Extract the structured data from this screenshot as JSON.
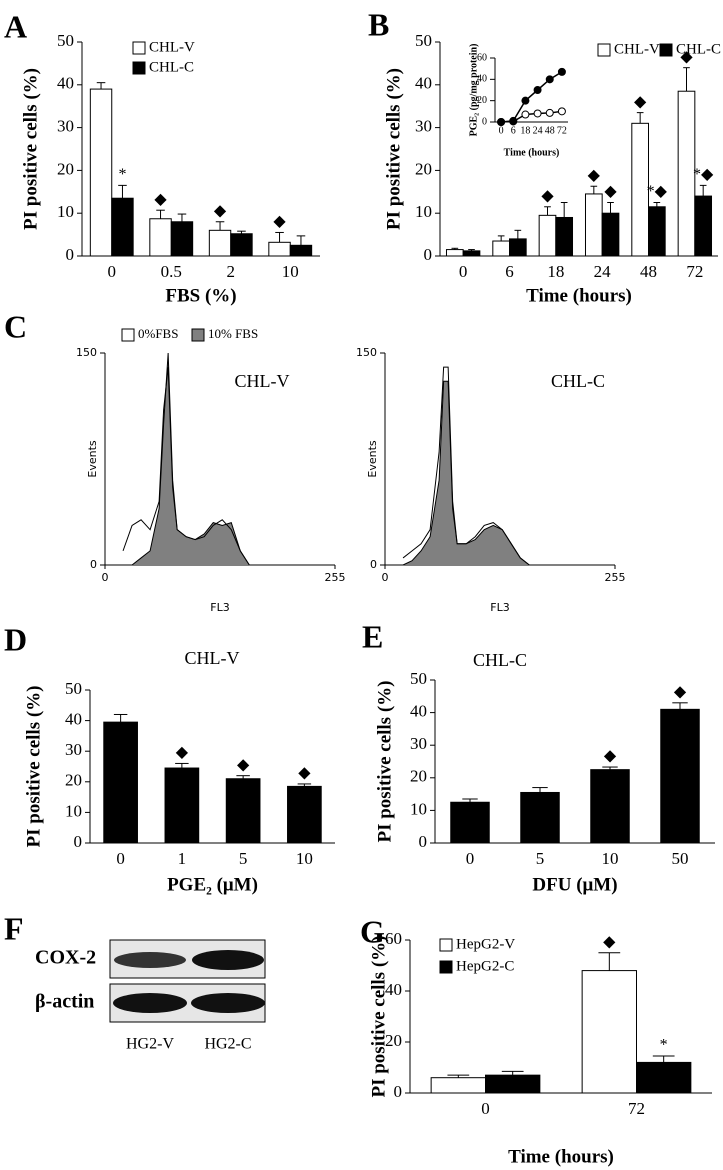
{
  "chart_data": [
    {
      "type": "bar",
      "panel": "A",
      "categories": [
        "0",
        "0.5",
        "2",
        "10"
      ],
      "xlabel": "FBS (%)",
      "ylabel": "PI positive cells (%)",
      "ylim": [
        0,
        50
      ],
      "yticks": [
        0,
        10,
        20,
        30,
        40,
        50
      ],
      "series": [
        {
          "name": "CHL-V",
          "color": "#ffffff",
          "values": [
            39,
            8.7,
            6,
            3.2
          ],
          "errors": [
            1.5,
            2,
            2,
            2.3
          ],
          "marks": [
            null,
            "◆",
            "◆",
            "◆"
          ]
        },
        {
          "name": "CHL-C",
          "color": "#000000",
          "values": [
            13.5,
            8,
            5.2,
            2.5
          ],
          "errors": [
            3,
            1.8,
            0.6,
            2.2
          ],
          "marks": [
            "*",
            null,
            null,
            null
          ]
        }
      ]
    },
    {
      "type": "bar",
      "panel": "B",
      "categories": [
        "0",
        "6",
        "18",
        "24",
        "48",
        "72"
      ],
      "xlabel": "Time (hours)",
      "ylabel": "PI positive cells (%)",
      "ylim": [
        0,
        50
      ],
      "yticks": [
        0,
        10,
        20,
        30,
        40,
        50
      ],
      "series": [
        {
          "name": "CHL-V",
          "color": "#ffffff",
          "values": [
            1.5,
            3.5,
            9.5,
            14.5,
            31,
            38.5
          ],
          "errors": [
            0.3,
            1.2,
            2,
            1.8,
            2.5,
            5.5
          ],
          "marks": [
            null,
            null,
            "◆",
            "◆",
            "◆",
            "◆"
          ]
        },
        {
          "name": "CHL-C",
          "color": "#000000",
          "values": [
            1.2,
            4,
            9,
            10,
            11.5,
            14
          ],
          "errors": [
            0.3,
            2,
            3.5,
            2.5,
            1,
            2.5
          ],
          "marks": [
            null,
            null,
            null,
            "◆",
            "*◆",
            "*◆"
          ]
        }
      ]
    },
    {
      "type": "line",
      "categories": [
        "0",
        "6",
        "18",
        "24",
        "48",
        "72"
      ],
      "xlabel": "Time (hours)",
      "ylabel": "PGE₂ (pg/mg protein)",
      "ylim": [
        0,
        60
      ],
      "yticks": [
        0,
        20,
        40,
        60
      ],
      "series": [
        {
          "color": "#ffffff",
          "values": [
            0,
            0.5,
            7,
            8,
            8.5,
            10
          ]
        },
        {
          "color": "#000000",
          "values": [
            0,
            1,
            20,
            30,
            40,
            47
          ]
        }
      ]
    },
    {
      "type": "area",
      "panel": "C",
      "annotation": "CHL-V",
      "xlabel": "FL3",
      "ylabel": "Events",
      "xlim": [
        0,
        255
      ],
      "xticks": [
        0,
        255
      ],
      "ylim": [
        0,
        150
      ],
      "yticks": [
        0,
        150
      ],
      "x": [
        20,
        30,
        40,
        50,
        60,
        65,
        70,
        75,
        80,
        90,
        100,
        110,
        120,
        130,
        140,
        150,
        160
      ],
      "series": [
        {
          "name": "0%FBS",
          "color": "#ffffff",
          "values": [
            10,
            28,
            32,
            25,
            45,
            110,
            140,
            55,
            25,
            20,
            18,
            20,
            28,
            32,
            25,
            10,
            0
          ]
        },
        {
          "name": "10% FBS",
          "color": "#808080",
          "values": [
            0,
            0,
            5,
            10,
            40,
            100,
            150,
            60,
            25,
            20,
            18,
            22,
            30,
            28,
            30,
            10,
            0
          ]
        }
      ]
    },
    {
      "type": "area",
      "annotation": "CHL-C",
      "xlabel": "FL3",
      "ylabel": "Events",
      "xlim": [
        0,
        255
      ],
      "xticks": [
        0,
        255
      ],
      "ylim": [
        0,
        150
      ],
      "yticks": [
        0,
        150
      ],
      "x": [
        20,
        30,
        40,
        50,
        60,
        65,
        70,
        75,
        80,
        90,
        100,
        110,
        120,
        130,
        140,
        150,
        160
      ],
      "series": [
        {
          "color": "#ffffff",
          "values": [
            5,
            10,
            15,
            25,
            80,
            140,
            140,
            45,
            15,
            15,
            20,
            28,
            30,
            25,
            15,
            5,
            0
          ]
        },
        {
          "color": "#808080",
          "values": [
            0,
            3,
            10,
            20,
            60,
            130,
            130,
            40,
            15,
            15,
            18,
            25,
            28,
            25,
            15,
            5,
            0
          ]
        }
      ]
    },
    {
      "type": "bar",
      "panel": "D",
      "annotation": "CHL-V",
      "categories": [
        "0",
        "1",
        "5",
        "10"
      ],
      "xlabel": "PGE₂ (μM)",
      "ylabel": "PI positive cells (%)",
      "ylim": [
        0,
        50
      ],
      "yticks": [
        0,
        10,
        20,
        30,
        40,
        50
      ],
      "color": "#000000",
      "values": [
        39.5,
        24.5,
        21,
        18.5
      ],
      "errors": [
        2.5,
        1.5,
        1,
        0.8
      ],
      "marks": [
        null,
        "◆",
        "◆",
        "◆"
      ]
    },
    {
      "type": "bar",
      "panel": "E",
      "annotation": "CHL-C",
      "categories": [
        "0",
        "5",
        "10",
        "50"
      ],
      "xlabel": "DFU (μM)",
      "ylabel": "PI positive cells (%)",
      "ylim": [
        0,
        50
      ],
      "yticks": [
        0,
        10,
        20,
        30,
        40,
        50
      ],
      "color": "#000000",
      "values": [
        12.5,
        15.5,
        22.5,
        41
      ],
      "errors": [
        1,
        1.5,
        0.8,
        2
      ],
      "marks": [
        null,
        null,
        "◆",
        "◆"
      ]
    },
    {
      "type": "bar",
      "panel": "G",
      "categories": [
        "0",
        "72"
      ],
      "xlabel": "Time (hours)",
      "ylabel": "PI positive cells (%)",
      "ylim": [
        0,
        60
      ],
      "yticks": [
        0,
        20,
        40,
        60
      ],
      "series": [
        {
          "name": "HepG2-V",
          "color": "#ffffff",
          "values": [
            6,
            48
          ],
          "errors": [
            1,
            7
          ],
          "marks": [
            null,
            "◆"
          ]
        },
        {
          "name": "HepG2-C",
          "color": "#000000",
          "values": [
            7,
            12
          ],
          "errors": [
            1.5,
            2.5
          ],
          "marks": [
            null,
            "*"
          ]
        }
      ]
    }
  ],
  "blot": {
    "panel": "F",
    "rows": [
      "COX-2",
      "β-actin"
    ],
    "lanes": [
      "HG2-V",
      "HG2-C"
    ]
  }
}
